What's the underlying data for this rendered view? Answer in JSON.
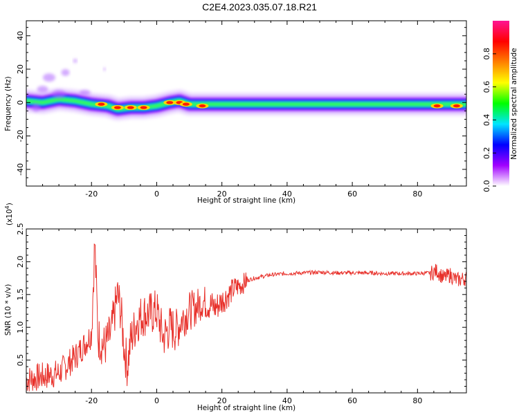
{
  "title": "C2E4.2023.035.07.18.R21",
  "chart_data": [
    {
      "type": "heatmap",
      "xlabel": "Height of straight line (km)",
      "ylabel": "Frequency (Hz)",
      "xlim": [
        -40,
        95
      ],
      "ylim": [
        -50,
        49
      ],
      "x_ticks": [
        -20,
        0,
        20,
        40,
        60,
        80
      ],
      "y_ticks": [
        40,
        20,
        0,
        -20,
        -40
      ],
      "colorbar": {
        "label": "Normalized spectral amplitude",
        "range": [
          0,
          1
        ],
        "ticks": [
          0.0,
          0.2,
          0.4,
          0.6,
          0.8
        ],
        "colors": [
          "#ffffff",
          "#a100ff",
          "#0000ff",
          "#00e5ff",
          "#00ff00",
          "#ffff00",
          "#ff8000",
          "#ff0000",
          "#ff1493"
        ]
      },
      "ridge": [
        {
          "x": -40,
          "f": 1
        },
        {
          "x": -35,
          "f": 0
        },
        {
          "x": -30,
          "f": 2
        },
        {
          "x": -25,
          "f": 1
        },
        {
          "x": -20,
          "f": -1
        },
        {
          "x": -15,
          "f": -2
        },
        {
          "x": -12,
          "f": -4
        },
        {
          "x": -8,
          "f": -3
        },
        {
          "x": -4,
          "f": -3
        },
        {
          "x": 0,
          "f": -2
        },
        {
          "x": 4,
          "f": 0
        },
        {
          "x": 7,
          "f": 1
        },
        {
          "x": 10,
          "f": -1
        },
        {
          "x": 15,
          "f": -1
        },
        {
          "x": 20,
          "f": -1
        },
        {
          "x": 40,
          "f": -1
        },
        {
          "x": 60,
          "f": -1
        },
        {
          "x": 80,
          "f": -1
        },
        {
          "x": 95,
          "f": -1
        }
      ],
      "hotspots": [
        {
          "x": -17,
          "f": -1
        },
        {
          "x": -12,
          "f": -3
        },
        {
          "x": -8,
          "f": -3
        },
        {
          "x": -4,
          "f": -3
        },
        {
          "x": 4,
          "f": 0
        },
        {
          "x": 7,
          "f": 0
        },
        {
          "x": 9,
          "f": -1
        },
        {
          "x": 14,
          "f": -2
        },
        {
          "x": 86,
          "f": -2
        },
        {
          "x": 92,
          "f": -2
        }
      ]
    },
    {
      "type": "line",
      "xlabel": "Height of straight line (km)",
      "ylabel": "SNR (10 * v/v)",
      "y_multiplier": "(x10",
      "y_multiplier_exp": "4",
      "y_multiplier_close": ")",
      "xlim": [
        -40,
        95
      ],
      "ylim": [
        0,
        2.5
      ],
      "x_ticks": [
        -20,
        0,
        20,
        40,
        60,
        80
      ],
      "y_ticks": [
        0.5,
        1.0,
        1.5,
        2.0,
        2.5
      ],
      "color": "#e8302a",
      "series": [
        {
          "x": [
            -40,
            -35,
            -30,
            -25,
            -22,
            -20,
            -19,
            -18,
            -16,
            -14,
            -12,
            -11,
            -10,
            -9,
            -8,
            -6,
            -4,
            -2,
            0,
            2,
            4,
            6,
            8,
            10,
            12,
            14,
            16,
            18,
            20,
            22,
            24,
            26,
            28,
            30,
            35,
            40,
            45,
            50,
            55,
            60,
            65,
            70,
            75,
            80,
            84,
            86,
            88,
            90,
            92,
            95
          ],
          "values": [
            0.2,
            0.25,
            0.3,
            0.55,
            0.75,
            0.9,
            2.3,
            0.85,
            0.7,
            0.9,
            1.5,
            1.25,
            0.7,
            0.4,
            0.8,
            1.1,
            1.2,
            1.2,
            1.25,
            0.85,
            1.0,
            0.95,
            1.15,
            1.25,
            1.3,
            1.4,
            1.35,
            1.3,
            1.4,
            1.5,
            1.6,
            1.65,
            1.72,
            1.75,
            1.8,
            1.82,
            1.83,
            1.84,
            1.83,
            1.83,
            1.83,
            1.82,
            1.82,
            1.82,
            1.83,
            1.86,
            1.75,
            1.8,
            1.72,
            1.75
          ]
        }
      ]
    }
  ]
}
